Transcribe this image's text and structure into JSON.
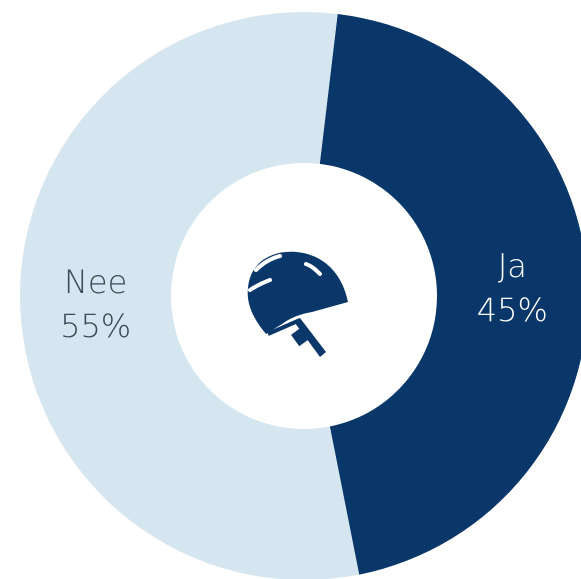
{
  "chart_data": {
    "type": "pie",
    "categories": [
      "Ja",
      "Nee"
    ],
    "values": [
      45,
      55
    ],
    "value_labels": [
      "45%",
      "55%"
    ],
    "colors": [
      "#0a3769",
      "#d6e6f1"
    ],
    "label_colors": [
      "#ffffff",
      "#3b4a5a"
    ]
  }
}
